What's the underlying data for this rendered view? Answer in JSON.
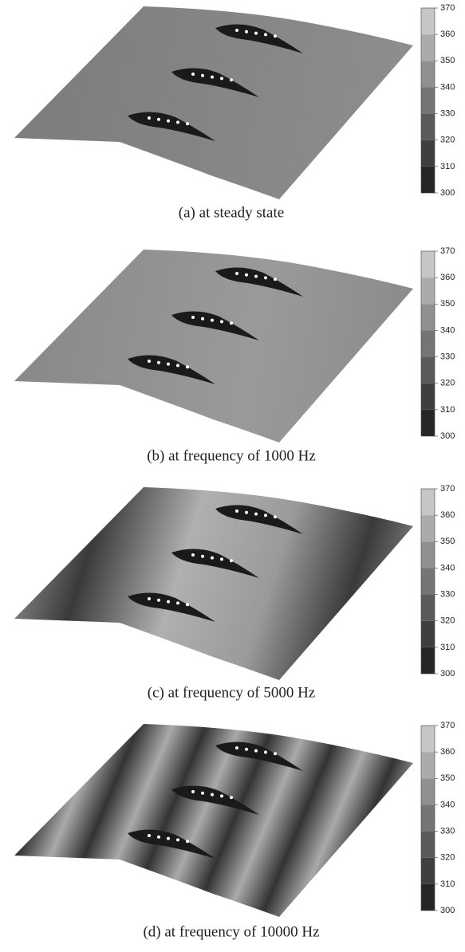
{
  "panels": [
    {
      "caption": "(a) at steady state",
      "colorbar": {
        "ticks": [
          300,
          310,
          320,
          330,
          340,
          350,
          360,
          370
        ]
      }
    },
    {
      "caption": "(b) at frequency of 1000 Hz",
      "colorbar": {
        "ticks": [
          300,
          310,
          320,
          330,
          340,
          350,
          360,
          370
        ]
      }
    },
    {
      "caption": "(c) at frequency of 5000 Hz",
      "colorbar": {
        "ticks": [
          300,
          310,
          320,
          330,
          340,
          350,
          360,
          370
        ]
      }
    },
    {
      "caption": "(d) at frequency of 10000 Hz",
      "colorbar": {
        "ticks": [
          300,
          310,
          320,
          330,
          340,
          350,
          360,
          370
        ]
      }
    }
  ]
}
